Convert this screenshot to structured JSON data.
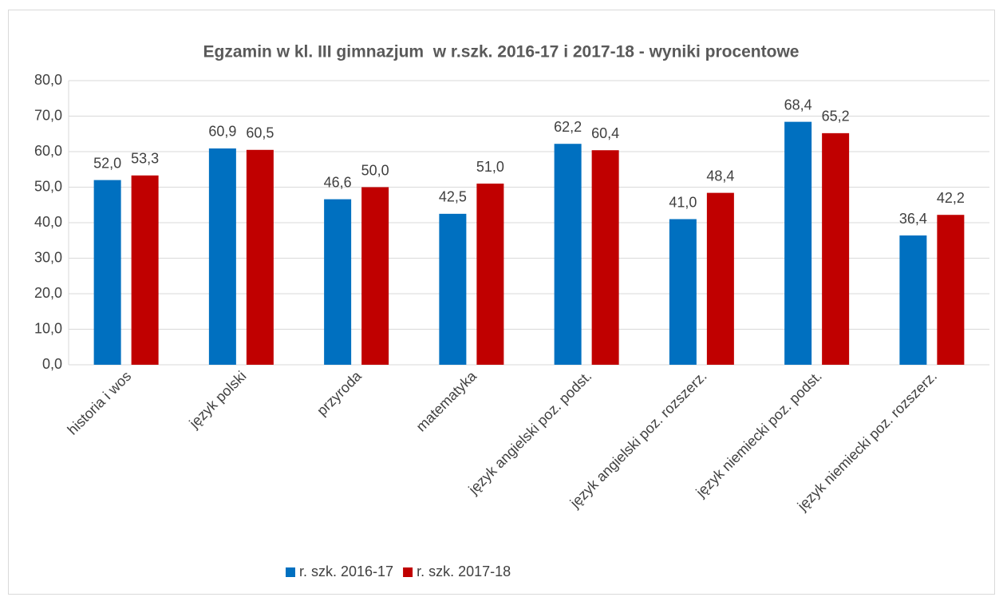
{
  "chart_data": {
    "type": "bar",
    "title": "Egzamin w kl. III gimnazjum  w r.szk. 2016-17 i 2017-18 - wyniki procentowe",
    "categories": [
      "historia i wos",
      "język polski",
      "przyroda",
      "matematyka",
      "język angielski poz. podst.",
      "język angielski poz. rozszerz.",
      "język niemiecki poz. podst.",
      "język niemiecki poz. rozszerz."
    ],
    "series": [
      {
        "name": "r. szk. 2016-17",
        "color": "#0070c0",
        "values": [
          52.0,
          60.9,
          46.6,
          42.5,
          62.2,
          41.0,
          68.4,
          36.4
        ],
        "value_labels": [
          "52,0",
          "60,9",
          "46,6",
          "42,5",
          "62,2",
          "41,0",
          "68,4",
          "36,4"
        ]
      },
      {
        "name": "r. szk. 2017-18",
        "color": "#c00000",
        "values": [
          53.3,
          60.5,
          50.0,
          51.0,
          60.4,
          48.4,
          65.2,
          42.2
        ],
        "value_labels": [
          "53,3",
          "60,5",
          "50,0",
          "51,0",
          "60,4",
          "48,4",
          "65,2",
          "42,2"
        ]
      }
    ],
    "ylim": [
      0,
      80
    ],
    "yticks": [
      {
        "value": 0,
        "label": "0,0"
      },
      {
        "value": 10,
        "label": "10,0"
      },
      {
        "value": 20,
        "label": "20,0"
      },
      {
        "value": 30,
        "label": "30,0"
      },
      {
        "value": 40,
        "label": "40,0"
      },
      {
        "value": 50,
        "label": "50,0"
      },
      {
        "value": 60,
        "label": "60,0"
      },
      {
        "value": 70,
        "label": "70,0"
      },
      {
        "value": 80,
        "label": "80,0"
      }
    ],
    "grid": true,
    "legend": "bottom"
  }
}
